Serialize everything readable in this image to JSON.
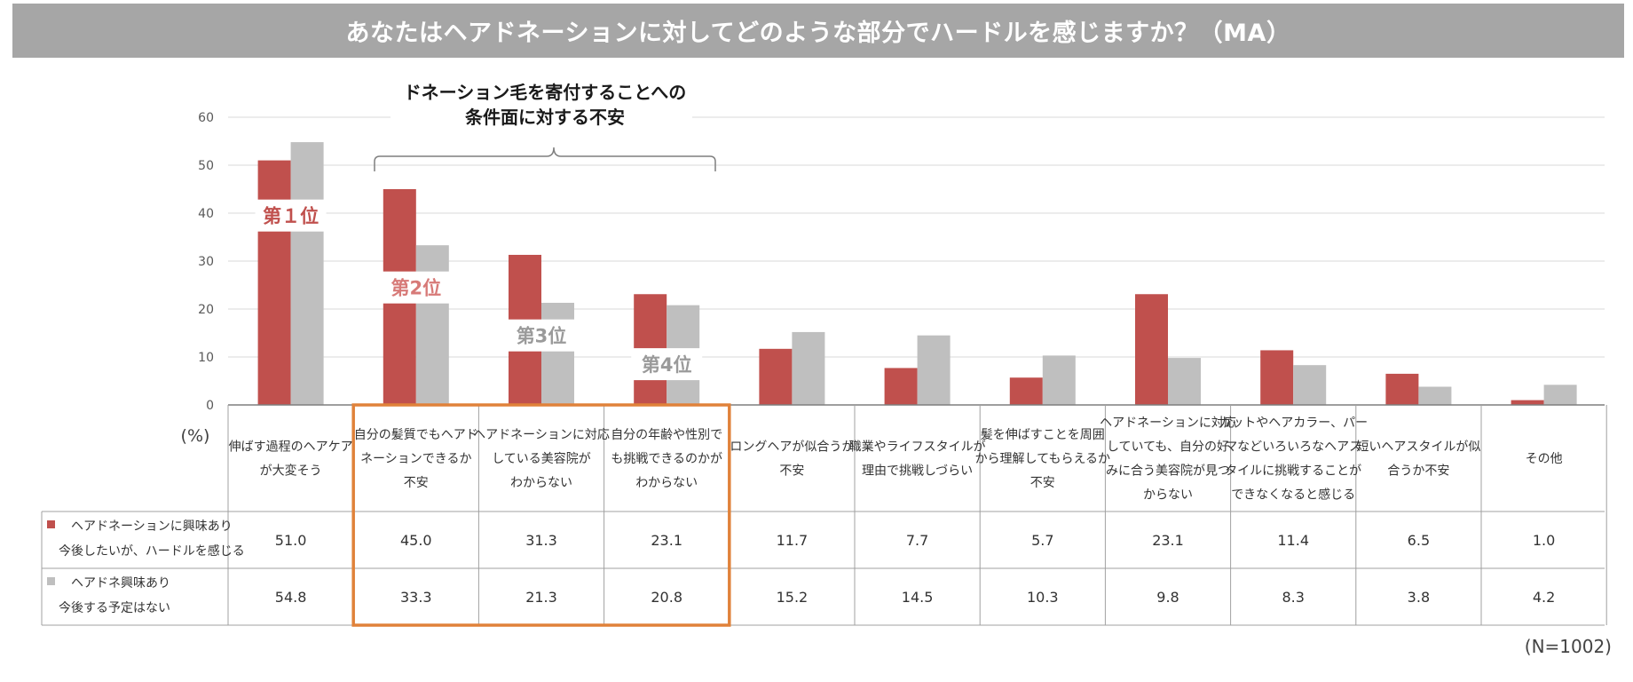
{
  "title": "あなたはヘアドネーションに対してどのような部分でハードルを感じますか？（MA）",
  "sample_note": "(N=1002)",
  "colors": {
    "series1": "#c0504d",
    "series2": "#bfbfbf",
    "highlight": "#e0823a",
    "title_bg": "#a6a6a6"
  },
  "annotation": {
    "line1": "ドネーション毛を寄付することへの",
    "line2": "条件面に対する不安"
  },
  "chart_data": {
    "type": "bar",
    "ylabel": "(%)",
    "ylim": [
      0,
      60
    ],
    "yticks": [
      0,
      10,
      20,
      30,
      40,
      50,
      60
    ],
    "grid": true,
    "categories": [
      [
        "伸ばす過程のヘアケア",
        "が大変そう"
      ],
      [
        "自分の髪質でもヘアド",
        "ネーションできるか",
        "不安"
      ],
      [
        "ヘアドネーションに対応",
        "している美容院が",
        "わからない"
      ],
      [
        "自分の年齢や性別で",
        "も挑戦できるのかが",
        "わからない"
      ],
      [
        "ロングヘアが似合うか",
        "不安"
      ],
      [
        "職業やライフスタイルが",
        "理由で挑戦しづらい"
      ],
      [
        "髪を伸ばすことを周囲",
        "から理解してもらえるか",
        "不安"
      ],
      [
        "ヘアドネーションに対応",
        "していても、自分の好",
        "みに合う美容院が見つ",
        "からない"
      ],
      [
        "カットやヘアカラー、パー",
        "マなどいろいろなヘアス",
        "タイルに挑戦することが",
        "できなくなると感じる"
      ],
      [
        "短いヘアスタイルが似",
        "合うか不安"
      ],
      [
        "その他"
      ]
    ],
    "series": [
      {
        "name": [
          "ヘアドネーションに興味あり",
          "今後したいが、ハードルを感じる"
        ],
        "values": [
          51.0,
          45.0,
          31.3,
          23.1,
          11.7,
          7.7,
          5.7,
          23.1,
          11.4,
          6.5,
          1.0
        ],
        "display": [
          "51.0",
          "45.0",
          "31.3",
          "23.1",
          "11.7",
          "7.7",
          "5.7",
          "23.1",
          "11.4",
          "6.5",
          "1.0"
        ]
      },
      {
        "name": [
          "ヘアドネ興味あり",
          "今後する予定はない"
        ],
        "values": [
          54.8,
          33.3,
          21.3,
          20.8,
          15.2,
          14.5,
          10.3,
          9.8,
          8.3,
          3.8,
          4.2
        ],
        "display": [
          "54.8",
          "33.3",
          "21.3",
          "20.8",
          "15.2",
          "14.5",
          "10.3",
          "9.8",
          "8.3",
          "3.8",
          "4.2"
        ]
      }
    ],
    "rank_labels": [
      {
        "text": "第１位",
        "category": 0,
        "value": 39.5,
        "color": "#c0504d"
      },
      {
        "text": "第2位",
        "category": 1,
        "value": 24.5,
        "color": "#d77a78"
      },
      {
        "text": "第3位",
        "category": 2,
        "value": 14.5,
        "color": "#9a9a9a"
      },
      {
        "text": "第4位",
        "category": 3,
        "value": 8.5,
        "color": "#9a9a9a"
      }
    ],
    "highlight_categories": [
      1,
      2,
      3
    ]
  }
}
